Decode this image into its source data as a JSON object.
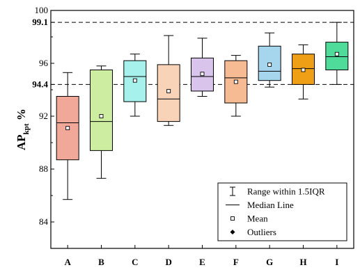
{
  "chart_data": {
    "type": "box",
    "ylabel": {
      "main": "AP",
      "sub": "kpt",
      "suffix": " %"
    },
    "ylim": [
      82,
      100
    ],
    "yticks": [
      84,
      88,
      92,
      96,
      100
    ],
    "highlight_ticks": [
      {
        "value": 94.4,
        "label": "94.4"
      },
      {
        "value": 99.1,
        "label": "99.1"
      }
    ],
    "reference_lines": [
      94.4,
      99.1
    ],
    "categories": [
      "A",
      "B",
      "C",
      "D",
      "E",
      "F",
      "G",
      "H",
      "I"
    ],
    "boxes": [
      {
        "label": "A",
        "whisker_low": 85.7,
        "q1": 88.7,
        "median": 91.5,
        "q3": 93.5,
        "whisker_high": 95.3,
        "mean": 91.1,
        "color": "#f2a898"
      },
      {
        "label": "B",
        "whisker_low": 87.3,
        "q1": 89.4,
        "median": 91.6,
        "q3": 95.5,
        "whisker_high": 95.8,
        "mean": 92.0,
        "color": "#cdeda0"
      },
      {
        "label": "C",
        "whisker_low": 92.0,
        "q1": 93.1,
        "median": 95.0,
        "q3": 96.2,
        "whisker_high": 96.7,
        "mean": 94.7,
        "color": "#a6f1ec"
      },
      {
        "label": "D",
        "whisker_low": 91.3,
        "q1": 91.6,
        "median": 93.3,
        "q3": 95.9,
        "whisker_high": 98.1,
        "mean": 93.9,
        "color": "#f8d3b7"
      },
      {
        "label": "E",
        "whisker_low": 93.5,
        "q1": 93.9,
        "median": 95.0,
        "q3": 96.4,
        "whisker_high": 97.9,
        "mean": 95.2,
        "color": "#d9c5ec"
      },
      {
        "label": "F",
        "whisker_low": 92.0,
        "q1": 93.0,
        "median": 94.9,
        "q3": 96.2,
        "whisker_high": 96.6,
        "mean": 94.6,
        "color": "#f7bb94"
      },
      {
        "label": "G",
        "whisker_low": 94.2,
        "q1": 94.7,
        "median": 95.4,
        "q3": 97.3,
        "whisker_high": 98.3,
        "mean": 95.9,
        "color": "#a6d6ee"
      },
      {
        "label": "H",
        "whisker_low": 93.3,
        "q1": 94.4,
        "median": 95.6,
        "q3": 96.7,
        "whisker_high": 97.4,
        "mean": 95.5,
        "color": "#ef9f16"
      },
      {
        "label": "I",
        "whisker_low": 94.4,
        "q1": 95.5,
        "median": 96.5,
        "q3": 97.6,
        "whisker_high": 99.1,
        "mean": 96.7,
        "color": "#4fdc9a"
      }
    ],
    "legend": {
      "position": "bottom-right",
      "entries": [
        {
          "key": "range",
          "label": "Range within 1.5IQR"
        },
        {
          "key": "median",
          "label": "Median Line"
        },
        {
          "key": "mean",
          "label": "Mean"
        },
        {
          "key": "outliers",
          "label": "Outliers"
        }
      ]
    },
    "grid": false
  }
}
